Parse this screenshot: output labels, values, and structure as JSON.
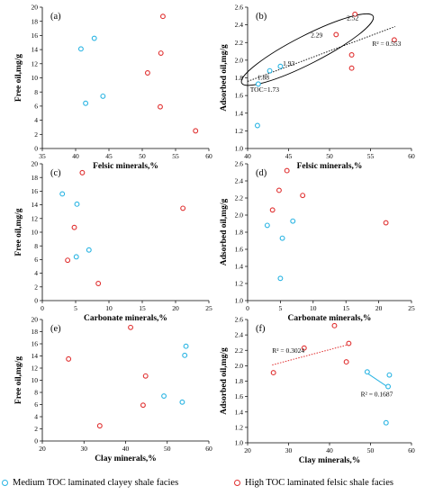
{
  "colors": {
    "medium": "#29b4e3",
    "high": "#e03030"
  },
  "legend": [
    {
      "label": "Medium TOC laminated clayey shale facies",
      "color": "#29b4e3"
    },
    {
      "label": "High TOC  laminated felsic shale facies",
      "color": "#e03030"
    }
  ],
  "chart_data": [
    {
      "type": "scatter",
      "panel": "(a)",
      "xlabel": "Felsic minerals,%",
      "ylabel": "Free oil,mg/g",
      "xlim": [
        35,
        60
      ],
      "xticks": [
        35,
        40,
        45,
        50,
        55,
        60
      ],
      "ylim": [
        0,
        20
      ],
      "yticks": [
        0,
        2,
        4,
        6,
        8,
        10,
        12,
        14,
        16,
        18,
        20
      ],
      "series": [
        {
          "key": "medium",
          "points": [
            [
              40.8,
              14.1
            ],
            [
              42.8,
              15.6
            ],
            [
              41.5,
              6.4
            ],
            [
              44.1,
              7.4
            ]
          ]
        },
        {
          "key": "high",
          "points": [
            [
              53.1,
              18.7
            ],
            [
              52.8,
              13.5
            ],
            [
              50.8,
              10.7
            ],
            [
              52.7,
              5.9
            ],
            [
              58.0,
              2.5
            ]
          ]
        }
      ]
    },
    {
      "type": "scatter",
      "panel": "(b)",
      "xlabel": "Felsic minerals,%",
      "ylabel": "Adsorbed oil,mg/g",
      "xlim": [
        40,
        60
      ],
      "xticks": [
        40,
        45,
        50,
        55,
        60
      ],
      "ylim": [
        1.0,
        2.6
      ],
      "yticks": [
        "1.0",
        "1.2",
        "1.4",
        "1.6",
        "1.8",
        "2.0",
        "2.2",
        "2.4",
        "2.6"
      ],
      "series": [
        {
          "key": "medium",
          "points": [
            [
              41.2,
              1.26
            ],
            [
              42.7,
              1.88
            ],
            [
              44.0,
              1.93
            ],
            [
              41.3,
              1.73
            ]
          ]
        },
        {
          "key": "high",
          "points": [
            [
              50.8,
              2.29
            ],
            [
              53.1,
              2.52
            ],
            [
              52.7,
              2.06
            ],
            [
              52.7,
              1.91
            ],
            [
              57.9,
              2.23
            ]
          ]
        }
      ],
      "trendline": [
        [
          40,
          1.76
        ],
        [
          58,
          2.38
        ]
      ],
      "annotations": [
        {
          "text": "R² = 0.553",
          "x": 55.2,
          "y": 2.16
        },
        {
          "text": "2.52",
          "x": 52.1,
          "y": 2.45
        },
        {
          "text": "2.29",
          "x": 47.7,
          "y": 2.26
        },
        {
          "text": "1.93",
          "x": 44.3,
          "y": 1.94
        },
        {
          "text": "1.88",
          "x": 41.2,
          "y": 1.78
        },
        {
          "text": "TOC=1.73",
          "x": 40.3,
          "y": 1.64
        }
      ],
      "ellipse": {
        "cx": 47.3,
        "cy": 2.12,
        "rx": 9.0,
        "ry": 0.16,
        "angle": -27
      }
    },
    {
      "type": "scatter",
      "panel": "(c)",
      "xlabel": "Carbonate minerals,%",
      "ylabel": "Free oil,mg/g",
      "xlim": [
        0,
        25
      ],
      "xticks": [
        0,
        5,
        10,
        15,
        20,
        25
      ],
      "ylim": [
        0,
        20
      ],
      "yticks": [
        0,
        2,
        4,
        6,
        8,
        10,
        12,
        14,
        16,
        18,
        20
      ],
      "series": [
        {
          "key": "medium",
          "points": [
            [
              3.0,
              15.6
            ],
            [
              5.2,
              14.1
            ],
            [
              5.1,
              6.4
            ],
            [
              7.0,
              7.4
            ]
          ]
        },
        {
          "key": "high",
          "points": [
            [
              6.0,
              18.7
            ],
            [
              21.1,
              13.5
            ],
            [
              4.8,
              10.7
            ],
            [
              3.8,
              5.9
            ],
            [
              8.4,
              2.5
            ]
          ]
        }
      ]
    },
    {
      "type": "scatter",
      "panel": "(d)",
      "xlabel": "Carbonate minerals,%",
      "ylabel": "Adsorbed oil,mg/g",
      "xlim": [
        0,
        25
      ],
      "xticks": [
        0,
        5,
        10,
        15,
        20,
        25
      ],
      "ylim": [
        1.0,
        2.6
      ],
      "yticks": [
        "1.0",
        "1.2",
        "1.4",
        "1.6",
        "1.8",
        "2.0",
        "2.2",
        "2.4",
        "2.6"
      ],
      "series": [
        {
          "key": "medium",
          "points": [
            [
              3.0,
              1.88
            ],
            [
              6.9,
              1.93
            ],
            [
              5.3,
              1.73
            ],
            [
              5.0,
              1.26
            ]
          ]
        },
        {
          "key": "high",
          "points": [
            [
              6.0,
              2.52
            ],
            [
              4.8,
              2.29
            ],
            [
              8.4,
              2.23
            ],
            [
              3.8,
              2.06
            ],
            [
              21.1,
              1.91
            ]
          ]
        }
      ]
    },
    {
      "type": "scatter",
      "panel": "(e)",
      "xlabel": "Clay minerals,%",
      "ylabel": "Free oil,mg/g",
      "xlim": [
        20,
        60
      ],
      "xticks": [
        20,
        30,
        40,
        50,
        60
      ],
      "ylim": [
        0,
        20
      ],
      "yticks": [
        0,
        2,
        4,
        6,
        8,
        10,
        12,
        14,
        16,
        18,
        20
      ],
      "series": [
        {
          "key": "medium",
          "points": [
            [
              54.5,
              15.6
            ],
            [
              54.2,
              14.1
            ],
            [
              49.2,
              7.4
            ],
            [
              53.6,
              6.4
            ]
          ]
        },
        {
          "key": "high",
          "points": [
            [
              41.2,
              18.7
            ],
            [
              26.3,
              13.5
            ],
            [
              44.8,
              10.7
            ],
            [
              44.2,
              5.9
            ],
            [
              33.8,
              2.5
            ]
          ]
        }
      ]
    },
    {
      "type": "scatter",
      "panel": "(f)",
      "xlabel": "Clay minerals,%",
      "ylabel": "Adsorbed oil,mg/g",
      "xlim": [
        20,
        60
      ],
      "xticks": [
        20,
        30,
        40,
        50,
        60
      ],
      "ylim": [
        1.0,
        2.6
      ],
      "yticks": [
        "1.0",
        "1.2",
        "1.4",
        "1.6",
        "1.8",
        "2.0",
        "2.2",
        "2.4",
        "2.6"
      ],
      "series": [
        {
          "key": "medium",
          "points": [
            [
              49.2,
              1.92
            ],
            [
              54.6,
              1.88
            ],
            [
              54.3,
              1.73
            ],
            [
              53.8,
              1.26
            ]
          ]
        },
        {
          "key": "high",
          "points": [
            [
              26.3,
              1.91
            ],
            [
              33.8,
              2.23
            ],
            [
              41.2,
              2.52
            ],
            [
              44.7,
              2.29
            ],
            [
              44.1,
              2.05
            ]
          ]
        }
      ],
      "trendlines": [
        {
          "key": "high",
          "points": [
            [
              26,
              2.01
            ],
            [
              45,
              2.28
            ]
          ]
        },
        {
          "key": "medium",
          "points": [
            [
              49,
              1.91
            ],
            [
              54.6,
              1.71
            ]
          ]
        }
      ],
      "annotations": [
        {
          "text": "R² = 0.3024",
          "x": 26.0,
          "y": 2.17
        },
        {
          "text": "R² = 0.1687",
          "x": 47.6,
          "y": 1.6
        }
      ]
    }
  ]
}
